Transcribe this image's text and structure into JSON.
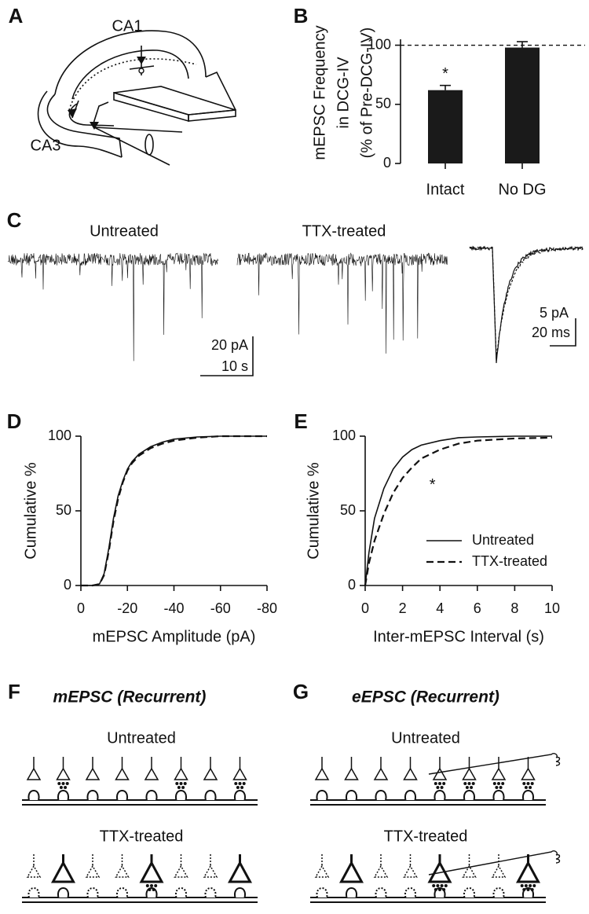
{
  "panel_labels": [
    "A",
    "B",
    "C",
    "D",
    "E",
    "F",
    "G"
  ],
  "panel_a": {
    "region_top": "CA1",
    "region_bottom": "CA3"
  },
  "panel_c": {
    "trace_labels": [
      "Untreated",
      "TTX-treated"
    ],
    "scale_bar_left": [
      "20 pA",
      "10 s"
    ],
    "scale_bar_right": [
      "5 pA",
      "20 ms"
    ]
  },
  "panel_f": {
    "title": "mEPSC (Recurrent)",
    "row_labels": [
      "Untreated",
      "TTX-treated"
    ]
  },
  "panel_g": {
    "title": "eEPSC (Recurrent)",
    "row_labels": [
      "Untreated",
      "TTX-treated"
    ]
  },
  "chart_data": [
    {
      "type": "bar",
      "ylabel": [
        "mEPSC Frequency",
        "in DCG-IV",
        "(% of Pre-DCG-IV)"
      ],
      "categories": [
        "Intact",
        "No DG"
      ],
      "values": [
        62,
        98
      ],
      "errors": [
        4,
        5
      ],
      "color": "#1a1a1a",
      "ylim": [
        0,
        105
      ],
      "yticks": [
        0,
        50,
        100
      ],
      "reference_line": 100,
      "annotations": [
        {
          "text": "*",
          "category": "Intact"
        }
      ]
    },
    {
      "type": "line",
      "xlabel": "mEPSC Amplitude (pA)",
      "ylabel": "Cumulative %",
      "x": [
        0,
        -5,
        -8,
        -10,
        -12,
        -14,
        -16,
        -18,
        -20,
        -22,
        -25,
        -30,
        -35,
        -40,
        -50,
        -60,
        -80
      ],
      "xlim": [
        0,
        -80
      ],
      "xticks": [
        0,
        -20,
        -40,
        -60,
        -80
      ],
      "ylim": [
        0,
        100
      ],
      "yticks": [
        0,
        50,
        100
      ],
      "series": [
        {
          "style": "solid",
          "color": "#111111",
          "values": [
            0,
            0,
            1,
            8,
            25,
            45,
            60,
            70,
            78,
            83,
            88,
            93,
            96,
            98,
            99.5,
            100,
            100
          ]
        },
        {
          "style": "dashed",
          "color": "#111111",
          "values": [
            0,
            0,
            1,
            7,
            23,
            43,
            58,
            69,
            77,
            82,
            87,
            92,
            95,
            97,
            99,
            100,
            100
          ]
        }
      ]
    },
    {
      "type": "line",
      "xlabel": "Inter-mEPSC Interval (s)",
      "ylabel": "Cumulative %",
      "x": [
        0,
        0.2,
        0.5,
        1,
        1.5,
        2,
        2.5,
        3,
        4,
        5,
        6,
        8,
        10
      ],
      "xlim": [
        0,
        10
      ],
      "xticks": [
        0,
        2,
        4,
        6,
        8,
        10
      ],
      "ylim": [
        0,
        100
      ],
      "yticks": [
        0,
        50,
        100
      ],
      "legend": "lower right",
      "series": [
        {
          "name": "Untreated",
          "style": "solid",
          "color": "#111111",
          "values": [
            0,
            22,
            45,
            65,
            78,
            86,
            91,
            94,
            97,
            99,
            99.5,
            100,
            100
          ]
        },
        {
          "name": "TTX-treated",
          "style": "dashed",
          "color": "#111111",
          "values": [
            0,
            15,
            30,
            48,
            62,
            72,
            79,
            85,
            91,
            95,
            97,
            98.5,
            99
          ]
        }
      ],
      "annotations": [
        {
          "text": "*",
          "x": 3.6,
          "y": 67
        }
      ]
    }
  ]
}
